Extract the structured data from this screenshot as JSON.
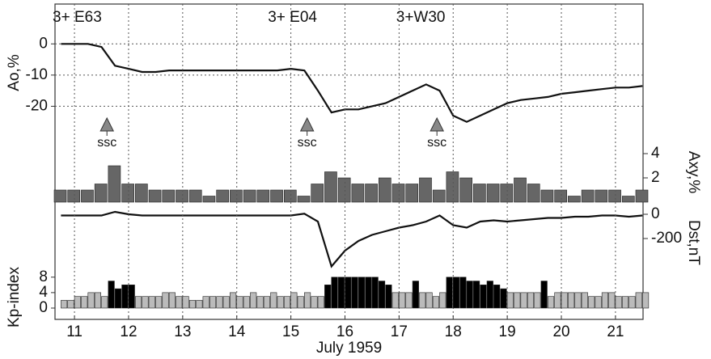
{
  "chart_data": [
    {
      "type": "line",
      "ylabel": "Ao,%",
      "y_axis": "left",
      "color": "#111",
      "grid": true,
      "xlim": [
        10.64,
        21.51
      ],
      "ylim": [
        -30,
        12
      ],
      "yticks": [
        0,
        -10,
        -20
      ],
      "x": [
        10.75,
        11,
        11.25,
        11.5,
        11.75,
        12,
        12.25,
        12.5,
        12.75,
        13,
        13.25,
        13.5,
        13.75,
        14,
        14.25,
        14.5,
        14.75,
        15,
        15.25,
        15.5,
        15.75,
        16,
        16.25,
        16.5,
        16.75,
        17,
        17.25,
        17.5,
        17.75,
        18,
        18.25,
        18.5,
        18.75,
        19,
        19.25,
        19.5,
        19.75,
        20,
        20.25,
        20.5,
        20.75,
        21,
        21.25,
        21.5
      ],
      "values": [
        0,
        0,
        0,
        -1,
        -7,
        -8,
        -9,
        -9,
        -8.5,
        -8.5,
        -8.5,
        -8.5,
        -8.5,
        -8.5,
        -8.5,
        -8.5,
        -8.5,
        -8,
        -8.5,
        -15,
        -22,
        -21,
        -21,
        -20,
        -19,
        -17,
        -15,
        -13,
        -15,
        -23,
        -25,
        -23,
        -21,
        -19,
        -18,
        -17.5,
        -17,
        -16,
        -15.5,
        -15,
        -14.5,
        -14,
        -14,
        -13.5
      ],
      "labels": [
        {
          "text": "3+ E63",
          "x": 11.05
        },
        {
          "text": "3+ E04",
          "x": 15.03
        },
        {
          "text": "3+W30",
          "x": 17.4
        }
      ],
      "markers": [
        {
          "text": "ssc",
          "x": 11.6
        },
        {
          "text": "ssc",
          "x": 15.3
        },
        {
          "text": "ssc",
          "x": 17.7
        }
      ]
    },
    {
      "type": "bar",
      "ylabel": "Axy,%",
      "y_axis": "right",
      "color": "#666",
      "xlim": [
        10.64,
        21.51
      ],
      "ylim": [
        0,
        5
      ],
      "yticks": [
        2,
        4
      ],
      "x": [
        10.75,
        11,
        11.25,
        11.5,
        11.75,
        12,
        12.25,
        12.5,
        12.75,
        13,
        13.25,
        13.5,
        13.75,
        14,
        14.25,
        14.5,
        14.75,
        15,
        15.25,
        15.5,
        15.75,
        16,
        16.25,
        16.5,
        16.75,
        17,
        17.25,
        17.5,
        17.75,
        18,
        18.25,
        18.5,
        18.75,
        19,
        19.25,
        19.5,
        19.75,
        20,
        20.25,
        20.5,
        20.75,
        21,
        21.25,
        21.5
      ],
      "values": [
        1,
        1,
        1,
        1.5,
        3,
        1.5,
        1.5,
        1,
        1,
        1,
        1,
        0.5,
        1,
        1,
        1,
        1,
        1,
        1,
        0.5,
        1.5,
        2.5,
        2,
        1.5,
        1.5,
        2,
        1.5,
        1.5,
        2,
        1,
        2.5,
        2,
        1.5,
        1.5,
        1.5,
        2,
        1.5,
        1,
        1,
        0.5,
        1,
        1,
        1,
        0.5,
        1
      ]
    },
    {
      "type": "line",
      "ylabel": "Dst,nT",
      "y_axis": "right",
      "color": "#111",
      "xlim": [
        10.64,
        21.51
      ],
      "ylim": [
        -450,
        100
      ],
      "yticks": [
        0,
        -200
      ],
      "x": [
        10.75,
        11,
        11.25,
        11.5,
        11.75,
        12,
        12.25,
        12.5,
        12.75,
        13,
        13.25,
        13.5,
        13.75,
        14,
        14.25,
        14.5,
        14.75,
        15,
        15.25,
        15.5,
        15.75,
        16,
        16.25,
        16.5,
        16.75,
        17,
        17.25,
        17.5,
        17.75,
        18,
        18.25,
        18.5,
        18.75,
        19,
        19.25,
        19.5,
        19.75,
        20,
        20.25,
        20.5,
        20.75,
        21,
        21.25,
        21.5
      ],
      "values": [
        -10,
        -10,
        -10,
        -10,
        20,
        0,
        -10,
        -10,
        -10,
        -10,
        -10,
        -10,
        -10,
        -10,
        -10,
        -10,
        -10,
        -10,
        5,
        -60,
        -430,
        -300,
        -220,
        -170,
        -140,
        -110,
        -90,
        -60,
        -10,
        -90,
        -110,
        -60,
        -50,
        -60,
        -50,
        -40,
        -30,
        -30,
        -20,
        -20,
        -10,
        -10,
        -20,
        -10
      ]
    },
    {
      "type": "bar",
      "ylabel": "Kp-index",
      "y_axis": "left",
      "xlabel": "July 1959",
      "xlim": [
        10.64,
        21.51
      ],
      "ylim": [
        0,
        9
      ],
      "yticks": [
        0,
        4,
        8
      ],
      "xticks": [
        11,
        12,
        13,
        14,
        15,
        16,
        17,
        18,
        19,
        20,
        21
      ],
      "x": [
        10.75,
        10.875,
        11,
        11.125,
        11.25,
        11.375,
        11.5,
        11.625,
        11.75,
        11.875,
        12,
        12.125,
        12.25,
        12.375,
        12.5,
        12.625,
        12.75,
        12.875,
        13,
        13.125,
        13.25,
        13.375,
        13.5,
        13.625,
        13.75,
        13.875,
        14,
        14.125,
        14.25,
        14.375,
        14.5,
        14.625,
        14.75,
        14.875,
        15,
        15.125,
        15.25,
        15.375,
        15.5,
        15.625,
        15.75,
        15.875,
        16,
        16.125,
        16.25,
        16.375,
        16.5,
        16.625,
        16.75,
        16.875,
        17,
        17.125,
        17.25,
        17.375,
        17.5,
        17.625,
        17.75,
        17.875,
        18,
        18.125,
        18.25,
        18.375,
        18.5,
        18.625,
        18.75,
        18.875,
        19,
        19.125,
        19.25,
        19.375,
        19.5,
        19.625,
        19.75,
        19.875,
        20,
        20.125,
        20.25,
        20.375,
        20.5,
        20.625,
        20.75,
        20.875,
        21,
        21.125,
        21.25,
        21.375,
        21.5
      ],
      "values": [
        2,
        2,
        3,
        3,
        4,
        4,
        3,
        7,
        5,
        6,
        6,
        3,
        3,
        3,
        3,
        4,
        4,
        3,
        3,
        2,
        2,
        3,
        3,
        3,
        3,
        4,
        3,
        3,
        4,
        3,
        3,
        4,
        3,
        3,
        4,
        3,
        4,
        3,
        3,
        6,
        8,
        8,
        8,
        8,
        8,
        8,
        8,
        7,
        6,
        4,
        4,
        4,
        7,
        4,
        4,
        3,
        4,
        8,
        8,
        8,
        7,
        7,
        6,
        7,
        6,
        5,
        4,
        4,
        4,
        4,
        4,
        7,
        3,
        4,
        4,
        4,
        4,
        4,
        3,
        3,
        4,
        4,
        3,
        3,
        3,
        4,
        4
      ],
      "colors": [
        "#bbb",
        "#bbb",
        "#bbb",
        "#bbb",
        "#bbb",
        "#bbb",
        "#bbb",
        "#000",
        "#000",
        "#000",
        "#000",
        "#bbb",
        "#bbb",
        "#bbb",
        "#bbb",
        "#bbb",
        "#bbb",
        "#bbb",
        "#bbb",
        "#bbb",
        "#bbb",
        "#bbb",
        "#bbb",
        "#bbb",
        "#bbb",
        "#bbb",
        "#bbb",
        "#bbb",
        "#bbb",
        "#bbb",
        "#bbb",
        "#bbb",
        "#bbb",
        "#bbb",
        "#bbb",
        "#bbb",
        "#bbb",
        "#bbb",
        "#bbb",
        "#000",
        "#000",
        "#000",
        "#000",
        "#000",
        "#000",
        "#000",
        "#000",
        "#000",
        "#000",
        "#bbb",
        "#bbb",
        "#bbb",
        "#000",
        "#bbb",
        "#bbb",
        "#bbb",
        "#bbb",
        "#000",
        "#000",
        "#000",
        "#000",
        "#000",
        "#000",
        "#000",
        "#000",
        "#000",
        "#bbb",
        "#bbb",
        "#bbb",
        "#bbb",
        "#bbb",
        "#000",
        "#bbb",
        "#bbb",
        "#bbb",
        "#bbb",
        "#bbb",
        "#bbb",
        "#bbb",
        "#bbb",
        "#bbb",
        "#bbb",
        "#bbb",
        "#bbb",
        "#bbb",
        "#bbb",
        "#bbb"
      ]
    }
  ]
}
